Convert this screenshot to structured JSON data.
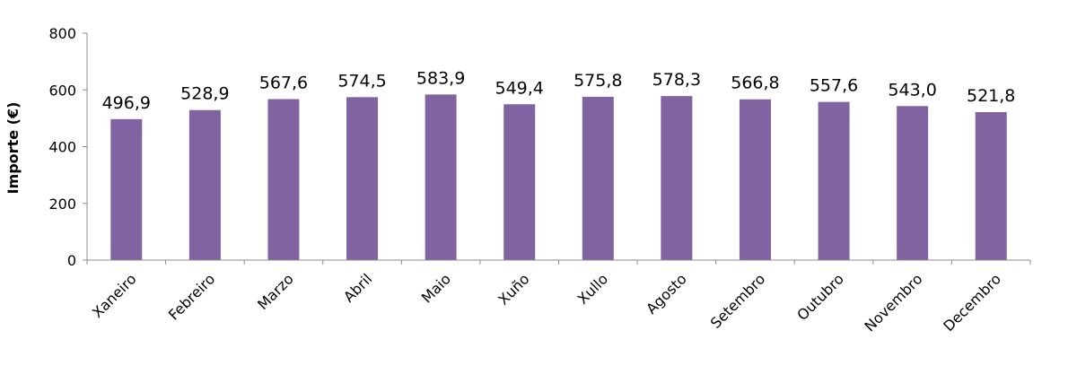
{
  "chart_data": {
    "type": "bar",
    "title": "",
    "xlabel": "",
    "ylabel": "Importe (€)",
    "ylim": [
      0,
      800
    ],
    "yticks": [
      0,
      200,
      400,
      600,
      800
    ],
    "grid": false,
    "bar_color": "#8064a2",
    "categories": [
      "Xaneiro",
      "Febreiro",
      "Marzo",
      "Abril",
      "Maio",
      "Xuño",
      "Xullo",
      "Agosto",
      "Setembro",
      "Outubro",
      "Novembro",
      "Decembro"
    ],
    "values": [
      496.9,
      528.9,
      567.6,
      574.5,
      583.9,
      549.4,
      575.8,
      578.3,
      566.8,
      557.6,
      543.0,
      521.8
    ],
    "data_labels": [
      "496,9",
      "528,9",
      "567,6",
      "574,5",
      "583,9",
      "549,4",
      "575,8",
      "578,3",
      "566,8",
      "557,6",
      "543,0",
      "521,8"
    ]
  }
}
